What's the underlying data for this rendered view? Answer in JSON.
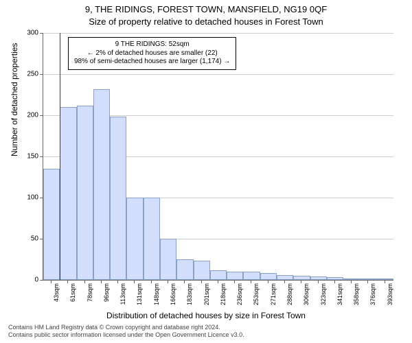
{
  "titles": {
    "main": "9, THE RIDINGS, FOREST TOWN, MANSFIELD, NG19 0QF",
    "sub": "Size of property relative to detached houses in Forest Town"
  },
  "axes": {
    "ylabel": "Number of detached properties",
    "xlabel": "Distribution of detached houses by size in Forest Town",
    "ymax": 300,
    "yticks": [
      0,
      50,
      100,
      150,
      200,
      250,
      300
    ],
    "grid_color": "#cccccc"
  },
  "chart": {
    "type": "histogram",
    "bar_fill": "#d2defb",
    "bar_stroke": "#8aa1c8",
    "vline_color": "#cc0000",
    "vline_x_value": 52,
    "x_start": 35,
    "x_step": 17.5,
    "xticks": [
      43,
      61,
      78,
      96,
      113,
      131,
      148,
      166,
      183,
      201,
      218,
      236,
      253,
      271,
      288,
      306,
      323,
      341,
      358,
      376,
      393
    ],
    "xticks_suffix": "sqm",
    "values": [
      135,
      210,
      212,
      232,
      198,
      100,
      100,
      50,
      25,
      23,
      12,
      10,
      10,
      8,
      6,
      5,
      4,
      3,
      2,
      2,
      2
    ]
  },
  "annotation": {
    "line1": "9 THE RIDINGS: 52sqm",
    "line2": "← 2% of detached houses are smaller (22)",
    "line3": "98% of semi-detached houses are larger (1,174) →"
  },
  "footer": {
    "line1": "Contains HM Land Registry data © Crown copyright and database right 2024.",
    "line2": "Contains public sector information licensed under the Open Government Licence v3.0."
  }
}
